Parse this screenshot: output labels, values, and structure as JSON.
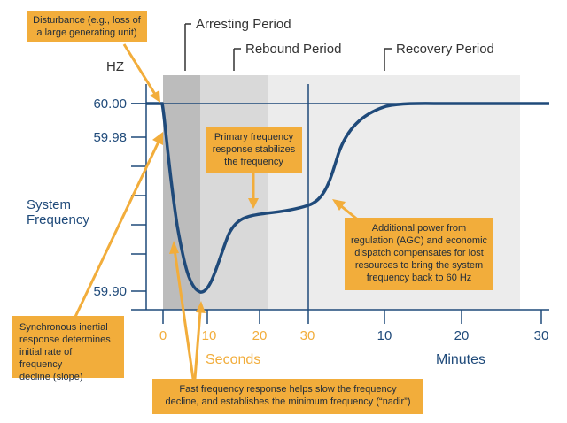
{
  "chart_data": {
    "type": "line",
    "y_unit": "HZ",
    "ylabel_lines": [
      "System",
      "Frequency"
    ],
    "y_ticks": [
      "60.00",
      "59.98",
      "59.90"
    ],
    "periods": [
      "Arresting Period",
      "Rebound Period",
      "Recovery Period"
    ],
    "x_seconds_ticks": [
      "0",
      "10",
      "20",
      "30"
    ],
    "x_seconds_label": "Seconds",
    "x_minutes_ticks": [
      "10",
      "20",
      "30"
    ],
    "x_minutes_label": "Minutes",
    "series": [
      {
        "points": [
          {
            "t": "-2 s",
            "hz": 60.0
          },
          {
            "t": "0 s",
            "hz": 60.0
          },
          {
            "t": "1 s",
            "hz": 59.985
          },
          {
            "t": "3 s",
            "hz": 59.935
          },
          {
            "t": "6 s",
            "hz": 59.905
          },
          {
            "t": "8 s",
            "hz": 59.899
          },
          {
            "t": "10 s",
            "hz": 59.905
          },
          {
            "t": "13 s",
            "hz": 59.925
          },
          {
            "t": "17 s",
            "hz": 59.94
          },
          {
            "t": "21 s",
            "hz": 59.942
          },
          {
            "t": "27 s",
            "hz": 59.945
          },
          {
            "t": "30 s",
            "hz": 59.948
          },
          {
            "t": "2 min",
            "hz": 59.952
          },
          {
            "t": "5 min",
            "hz": 59.966
          },
          {
            "t": "8 min",
            "hz": 59.991
          },
          {
            "t": "12 min",
            "hz": 60.0
          },
          {
            "t": "30 min",
            "hz": 60.0
          }
        ]
      }
    ],
    "colors": {
      "curve": "#1f4a7a",
      "axis": "#1f4a7a",
      "accent": "#f2ad3b",
      "arresting": "#bcbcbc",
      "rebound": "#d9d9d9",
      "recovery": "#ececec"
    }
  },
  "callouts": {
    "disturbance": [
      "Disturbance (e.g., loss of",
      "a large generating unit)"
    ],
    "primary": [
      "Primary frequency",
      "response stabilizes",
      "the frequency"
    ],
    "additional": [
      "Additional power from",
      "regulation (AGC) and economic",
      "dispatch compensates for lost",
      "resources to bring the system",
      "frequency back to 60 Hz"
    ],
    "synchronous": [
      "Synchronous inertial",
      "response determines",
      "initial rate of frequency",
      "decline (slope)"
    ],
    "fast": [
      "Fast frequency response helps slow the frequency",
      "decline, and establishes the minimum frequency (“nadir”)"
    ]
  }
}
